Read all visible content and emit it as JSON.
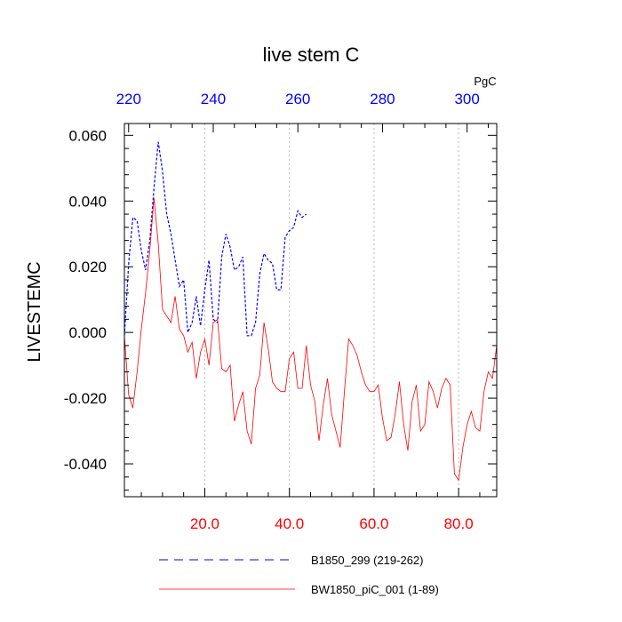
{
  "chart_data": {
    "type": "line",
    "title": "live stem C",
    "units": "PgC",
    "ylabel": "LIVESTEMC",
    "xlabel": "",
    "ylim": [
      -0.05,
      0.0636
    ],
    "bottom_axis": {
      "range": [
        1,
        89
      ],
      "ticks": [
        20,
        40,
        60,
        80
      ],
      "tick_labels": [
        "20.0",
        "40.0",
        "60.0",
        "80.0"
      ],
      "color": "#ff0000"
    },
    "top_axis": {
      "range": [
        219,
        307
      ],
      "ticks": [
        220,
        240,
        260,
        280,
        300
      ],
      "tick_labels": [
        "220",
        "240",
        "260",
        "280",
        "300"
      ],
      "color": "#0000ff"
    },
    "y_ticks": [
      0.06,
      0.04,
      0.02,
      0.0,
      -0.02,
      -0.04
    ],
    "y_tick_labels": [
      "0.060",
      "0.040",
      "0.020",
      "0.000",
      "-0.020",
      "-0.040"
    ],
    "grid": true,
    "series": [
      {
        "name": "B1850_299 (219-262)",
        "axis": "top",
        "color": "#0000ff",
        "style": "dashed",
        "x": [
          219,
          220,
          221,
          222,
          223,
          224,
          225,
          226,
          227,
          228,
          229,
          230,
          231,
          232,
          233,
          234,
          235,
          236,
          237,
          238,
          239,
          240,
          241,
          242,
          243,
          244,
          245,
          246,
          247,
          248,
          249,
          250,
          251,
          252,
          253,
          254,
          255,
          256,
          257,
          258,
          259,
          260,
          261,
          262
        ],
        "values": [
          -0.001,
          0.021,
          0.035,
          0.034,
          0.025,
          0.019,
          0.028,
          0.044,
          0.058,
          0.049,
          0.036,
          0.03,
          0.022,
          0.014,
          0.016,
          0.0,
          0.003,
          0.011,
          0.002,
          0.013,
          0.022,
          0.004,
          0.003,
          0.023,
          0.03,
          0.026,
          0.019,
          0.02,
          0.023,
          -0.001,
          -0.001,
          0.003,
          0.018,
          0.024,
          0.022,
          0.021,
          0.013,
          0.013,
          0.029,
          0.031,
          0.032,
          0.037,
          0.035,
          0.036
        ]
      },
      {
        "name": "BW1850_piC_001 (1-89)",
        "axis": "bottom",
        "color": "#ff0000",
        "style": "solid",
        "x": [
          1,
          2,
          3,
          4,
          5,
          6,
          7,
          8,
          9,
          10,
          11,
          12,
          13,
          14,
          15,
          16,
          17,
          18,
          19,
          20,
          21,
          22,
          23,
          24,
          25,
          26,
          27,
          28,
          29,
          30,
          31,
          32,
          33,
          34,
          35,
          36,
          37,
          38,
          39,
          40,
          41,
          42,
          43,
          44,
          45,
          46,
          47,
          48,
          49,
          50,
          51,
          52,
          53,
          54,
          55,
          56,
          57,
          58,
          59,
          60,
          61,
          62,
          63,
          64,
          65,
          66,
          67,
          68,
          69,
          70,
          71,
          72,
          73,
          74,
          75,
          76,
          77,
          78,
          79,
          80,
          81,
          82,
          83,
          84,
          85,
          86,
          87,
          88,
          89
        ],
        "values": [
          -0.001,
          -0.019,
          -0.023,
          -0.012,
          0.001,
          0.012,
          0.025,
          0.041,
          0.027,
          0.007,
          0.005,
          0.003,
          0.011,
          0.001,
          -0.001,
          -0.006,
          -0.003,
          -0.014,
          -0.006,
          -0.002,
          -0.01,
          0.003,
          0.004,
          -0.011,
          -0.012,
          -0.01,
          -0.027,
          -0.022,
          -0.018,
          -0.03,
          -0.034,
          -0.017,
          -0.013,
          0.003,
          -0.005,
          -0.015,
          -0.017,
          -0.018,
          -0.018,
          -0.008,
          -0.006,
          -0.017,
          -0.017,
          -0.004,
          -0.016,
          -0.021,
          -0.033,
          -0.022,
          -0.014,
          -0.025,
          -0.03,
          -0.035,
          -0.018,
          -0.002,
          -0.004,
          -0.007,
          -0.012,
          -0.016,
          -0.018,
          -0.018,
          -0.016,
          -0.026,
          -0.033,
          -0.032,
          -0.025,
          -0.015,
          -0.028,
          -0.036,
          -0.021,
          -0.016,
          -0.03,
          -0.028,
          -0.015,
          -0.018,
          -0.023,
          -0.017,
          -0.014,
          -0.016,
          -0.043,
          -0.045,
          -0.035,
          -0.028,
          -0.024,
          -0.029,
          -0.03,
          -0.018,
          -0.012,
          -0.014,
          -0.004
        ]
      }
    ]
  }
}
